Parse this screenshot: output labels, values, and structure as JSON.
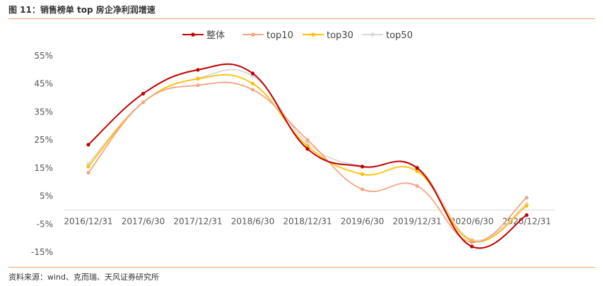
{
  "figure": {
    "title": "图 11：销售榜单 top 房企净利润增速",
    "source": "资料来源：wind、克而瑞、天风证券研究所"
  },
  "chart_data": {
    "type": "line",
    "categories": [
      "2016/12/31",
      "2017/6/30",
      "2017/12/31",
      "2018/6/30",
      "2018/12/31",
      "2019/6/30",
      "2019/12/31",
      "2020/6/30",
      "2020/12/31"
    ],
    "series": [
      {
        "name": "整体",
        "color": "#c00000",
        "values": [
          23.3,
          41.5,
          50.0,
          48.7,
          21.8,
          15.5,
          15.0,
          -13.0,
          -1.8
        ]
      },
      {
        "name": "top10",
        "color": "#f4a582",
        "values": [
          13.3,
          38.4,
          44.5,
          42.9,
          25.0,
          7.4,
          8.6,
          -11.5,
          4.4
        ]
      },
      {
        "name": "top30",
        "color": "#ffc000",
        "values": [
          15.5,
          38.4,
          46.8,
          45.1,
          22.8,
          12.8,
          13.9,
          -11.0,
          1.5
        ]
      },
      {
        "name": "top50",
        "color": "#d9d9d9",
        "values": [
          16.5,
          38.5,
          47.0,
          47.8,
          23.8,
          15.6,
          15.4,
          -10.5,
          2.2
        ]
      }
    ],
    "y_ticks": [
      "55%",
      "45%",
      "35%",
      "25%",
      "15%",
      "5%",
      "-5%",
      "-15%"
    ],
    "ylim": [
      -15,
      55
    ],
    "grid": false,
    "legend_position": "top"
  }
}
